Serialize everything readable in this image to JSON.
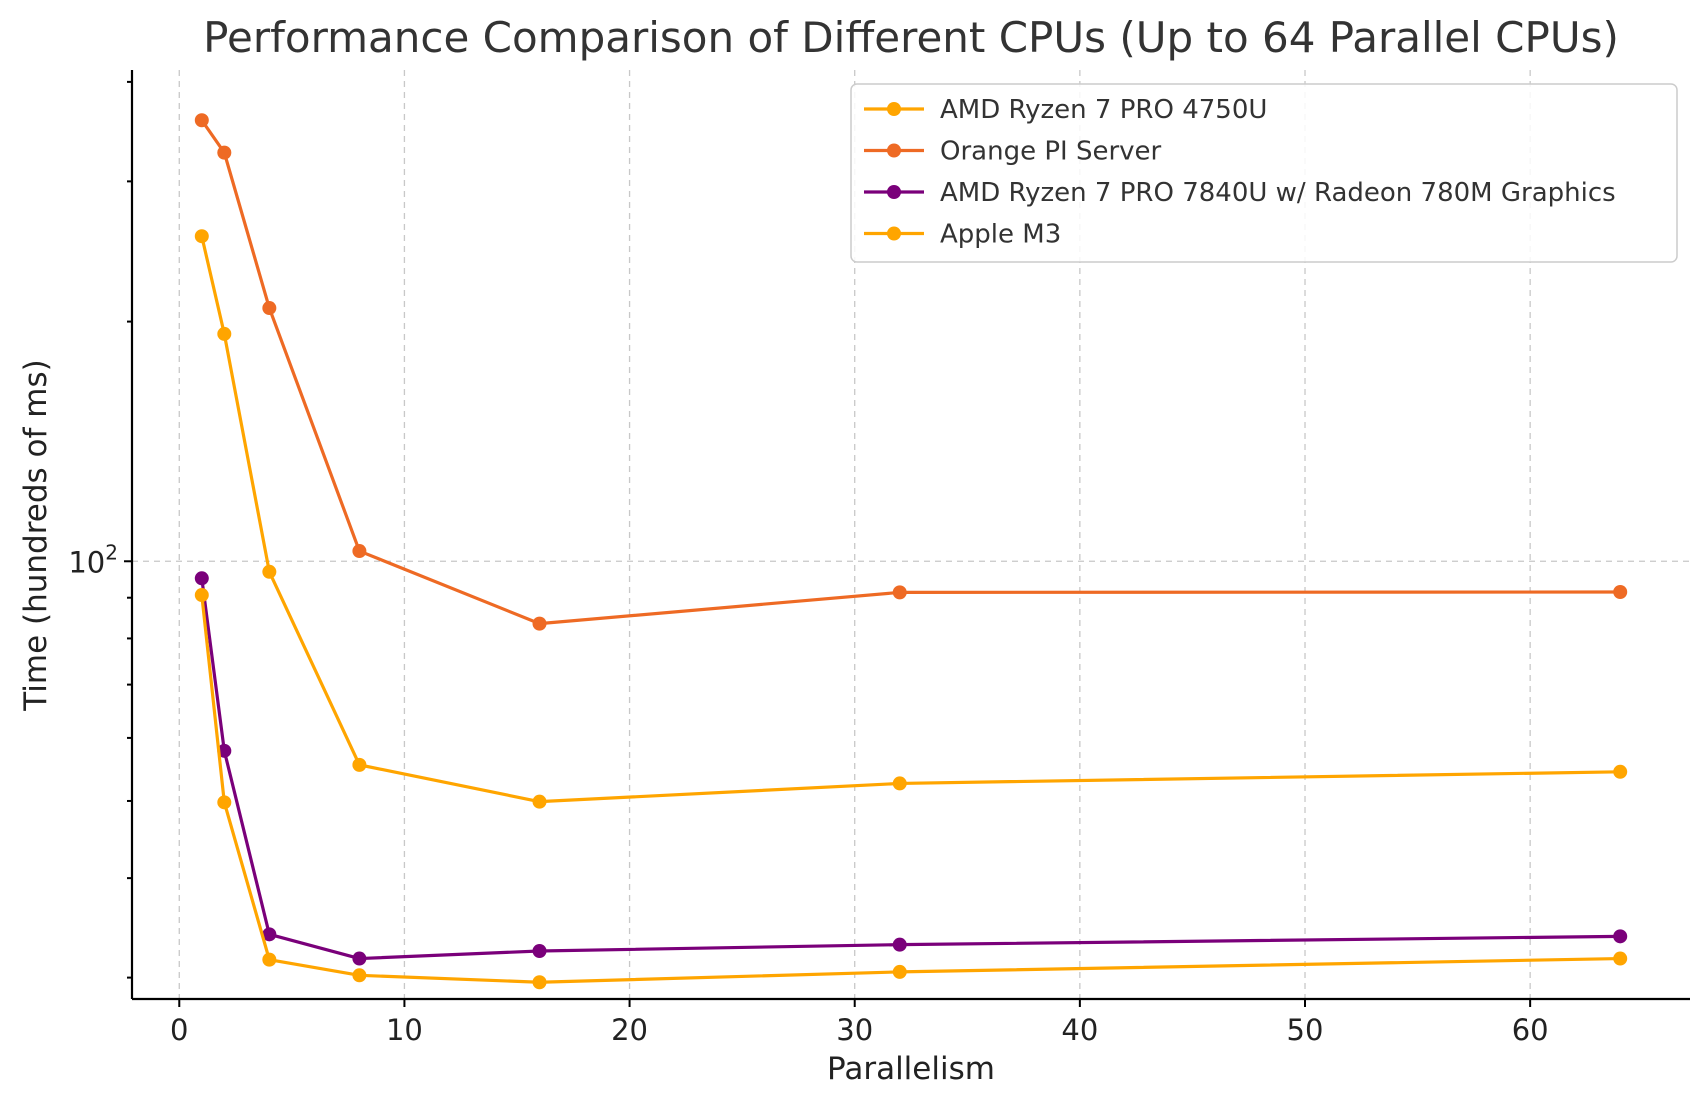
{
  "chart_data": {
    "type": "line",
    "title": "Performance Comparison of Different CPUs (Up to 64 Parallel CPUs)",
    "xlabel": "Parallelism",
    "ylabel": "Time (hundreds of ms)",
    "xlim": [
      -2.1,
      67.1
    ],
    "ylim": [
      28.2,
      414
    ],
    "yscale": "log",
    "grid": true,
    "legend_position": "top-right",
    "x_ticks": [
      0,
      10,
      20,
      30,
      40,
      50,
      60
    ],
    "y_tick_labels": [
      {
        "value": 100,
        "base": "10",
        "exp": "2"
      }
    ],
    "x": [
      1,
      2,
      4,
      8,
      16,
      32,
      64
    ],
    "series": [
      {
        "name": "AMD Ryzen 7 PRO 4750U",
        "color": "#FFA500",
        "values": [
          256,
          193,
          97,
          55.5,
          49.9,
          52.6,
          54.4
        ]
      },
      {
        "name": "Orange PI Server",
        "color": "#EE6A24",
        "values": [
          358,
          326,
          208,
          103,
          83.5,
          91.4,
          91.5
        ]
      },
      {
        "name": "AMD Ryzen 7 PRO 7840U w/ Radeon 780M Graphics",
        "color": "#7A007A",
        "values": [
          95.2,
          57.8,
          34.0,
          31.7,
          32.4,
          33.0,
          33.8
        ]
      },
      {
        "name": "Apple M3",
        "color": "#FFA500",
        "values": [
          90.7,
          49.8,
          31.6,
          30.2,
          29.6,
          30.5,
          31.7
        ]
      }
    ]
  }
}
